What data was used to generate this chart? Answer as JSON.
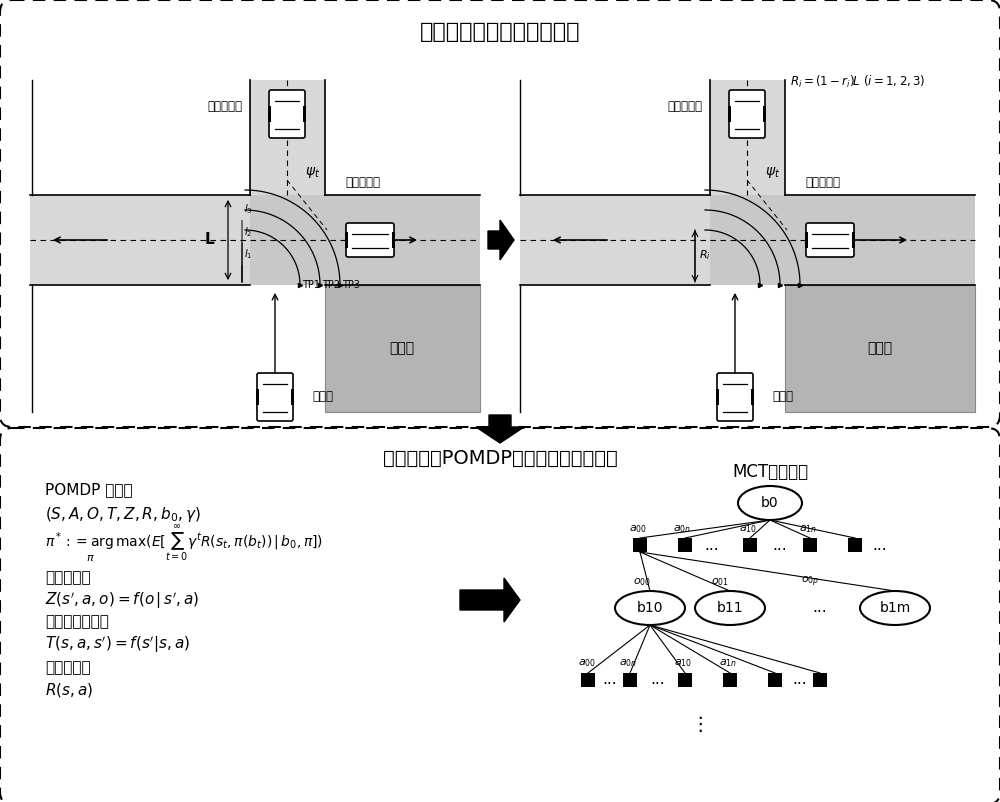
{
  "bg_color": "#ffffff",
  "top_title": "高层框架：候选路径生成器",
  "bottom_title": "低层框架：POMDP规划器和路径选择器",
  "mct_title": "MCT求解器：",
  "label_visible_car_left": "可观测车辆",
  "label_visible_car_right": "盲观测车辆",
  "label_blind_car": "盲区内车辆",
  "label_obstacle": "障碍物",
  "label_unmanned": "无人车",
  "label_R_formula": "$R_i=(1-r_i)L\\ (i=1,2,3)$",
  "road_color": "#d8d8d8",
  "obstacle_color": "#b4b4b4",
  "blind_color": "#c0c0c0",
  "road_line_color": "#000000",
  "pomdp_line1": "POMDP 模型：",
  "pomdp_line2": "$(S,A,O,T,Z,R,b_0,\\gamma)$",
  "pomdp_line3": "$\\pi^*:=\\arg\\max(E[\\sum_{t=0}^{\\infty}\\gamma^t R(s_t,\\pi(b_t))\\,|\\,b_0,\\pi])$",
  "pomdp_line3b": "$\\pi$",
  "pomdp_line4": "观测函数：",
  "pomdp_line5": "$Z(s',a,o)=f(o\\,|\\,s',a)$",
  "pomdp_line6": "概率转移函数：",
  "pomdp_line7": "$T(s,a,s')=f(s'|s,a)$",
  "pomdp_line8": "奖励函数：",
  "pomdp_line9": "$R(s,a)$"
}
